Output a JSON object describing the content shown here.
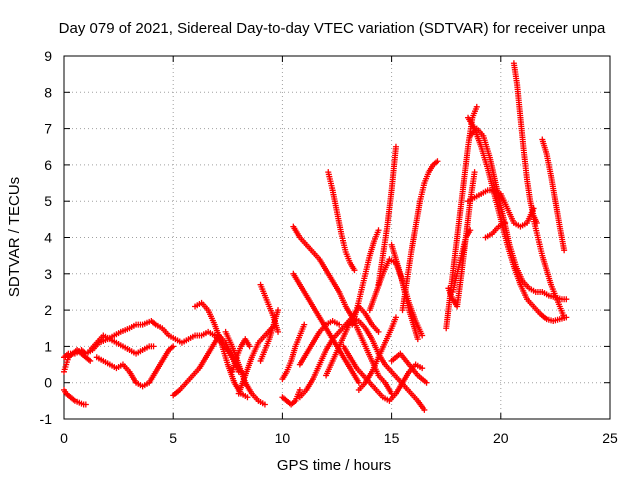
{
  "chart_data": {
    "type": "scatter",
    "title": "Day 079 of 2021, Sidereal Day-to-day VTEC variation (SDTVAR) for receiver unpa",
    "xlabel": "GPS time / hours",
    "ylabel": "SDTVAR / TECUs",
    "xlim": [
      0,
      25
    ],
    "ylim": [
      -1,
      9
    ],
    "xticks": [
      0,
      5,
      10,
      15,
      20,
      25
    ],
    "yticks": [
      -1,
      0,
      1,
      2,
      3,
      4,
      5,
      6,
      7,
      8,
      9
    ],
    "grid": true,
    "marker": "+",
    "color": "#ff0000",
    "series": [
      {
        "x": [
          0.0,
          0.2,
          0.5,
          0.8,
          1.0,
          1.3,
          1.6,
          2.0,
          2.3,
          2.6,
          3.0,
          3.3,
          3.6,
          4.0,
          4.2,
          4.5,
          4.8,
          5.1,
          5.4,
          5.7,
          6.0,
          6.3,
          6.6,
          6.9,
          7.2,
          7.5,
          7.8,
          8.1
        ],
        "y": [
          0.7,
          0.8,
          0.8,
          0.9,
          0.8,
          0.9,
          1.1,
          1.2,
          1.3,
          1.4,
          1.5,
          1.6,
          1.6,
          1.7,
          1.6,
          1.5,
          1.3,
          1.2,
          1.1,
          1.2,
          1.3,
          1.3,
          1.4,
          1.3,
          1.1,
          0.9,
          0.6,
          0.3
        ]
      },
      {
        "x": [
          0.0,
          0.1,
          0.3,
          0.5,
          0.7,
          0.9,
          1.0
        ],
        "y": [
          -0.2,
          -0.3,
          -0.4,
          -0.5,
          -0.55,
          -0.6,
          -0.6
        ]
      },
      {
        "x": [
          0.0,
          0.1,
          0.2,
          0.4,
          0.6,
          0.8,
          1.0,
          1.2
        ],
        "y": [
          0.3,
          0.5,
          0.7,
          0.8,
          0.9,
          0.8,
          0.7,
          0.6
        ]
      },
      {
        "x": [
          1.2,
          1.5,
          1.8,
          2.1,
          2.4,
          2.7,
          3.0,
          3.3,
          3.6,
          3.9,
          4.1
        ],
        "y": [
          0.9,
          1.1,
          1.3,
          1.2,
          1.1,
          1.0,
          0.9,
          0.8,
          0.9,
          1.0,
          1.0
        ]
      },
      {
        "x": [
          1.5,
          1.8,
          2.1,
          2.4,
          2.7,
          3.0,
          3.3,
          3.6,
          3.9,
          4.2,
          4.5,
          4.8,
          5.0
        ],
        "y": [
          0.7,
          0.6,
          0.5,
          0.4,
          0.5,
          0.3,
          0.0,
          -0.1,
          0.0,
          0.3,
          0.6,
          0.9,
          1.0
        ]
      },
      {
        "x": [
          5.0,
          5.3,
          5.6,
          5.9,
          6.2,
          6.5,
          6.8,
          7.1,
          7.4,
          7.7,
          8.0
        ],
        "y": [
          -0.35,
          -0.2,
          0.0,
          0.2,
          0.4,
          0.7,
          1.0,
          1.3,
          1.1,
          0.7,
          0.3
        ]
      },
      {
        "x": [
          6.0,
          6.3,
          6.6,
          6.9,
          7.2,
          7.5,
          7.8,
          8.1,
          8.4
        ],
        "y": [
          2.1,
          2.2,
          2.0,
          1.6,
          1.1,
          0.5,
          0.0,
          -0.3,
          -0.4
        ]
      },
      {
        "x": [
          7.4,
          7.7,
          8.0,
          8.3,
          8.6,
          8.9,
          9.2
        ],
        "y": [
          1.4,
          1.0,
          0.5,
          0.0,
          -0.3,
          -0.5,
          -0.6
        ]
      },
      {
        "x": [
          7.7,
          7.9,
          8.1,
          8.3,
          8.5
        ],
        "y": [
          0.3,
          0.7,
          1.0,
          1.2,
          1.0
        ]
      },
      {
        "x": [
          8.0,
          8.3,
          8.6,
          8.9,
          9.2,
          9.5
        ],
        "y": [
          -0.3,
          0.2,
          0.7,
          1.1,
          1.3,
          1.5
        ]
      },
      {
        "x": [
          9.0,
          9.2,
          9.4,
          9.6,
          9.8
        ],
        "y": [
          2.7,
          2.4,
          2.1,
          1.8,
          1.4
        ]
      },
      {
        "x": [
          9.0,
          9.2,
          9.4,
          9.6,
          9.8
        ],
        "y": [
          0.6,
          0.9,
          1.2,
          1.6,
          2.0
        ]
      },
      {
        "x": [
          10.0,
          10.2,
          10.4,
          10.6,
          10.8,
          11.0
        ],
        "y": [
          0.1,
          0.3,
          0.6,
          1.0,
          1.3,
          1.6
        ]
      },
      {
        "x": [
          10.0,
          10.2,
          10.4,
          10.6,
          10.8
        ],
        "y": [
          -0.4,
          -0.5,
          -0.6,
          -0.5,
          -0.2
        ]
      },
      {
        "x": [
          10.5,
          10.8,
          11.1,
          11.4,
          11.7,
          12.0,
          12.3,
          12.6,
          12.9,
          13.2,
          13.5,
          13.8,
          14.1,
          14.4,
          14.7,
          15.0
        ],
        "y": [
          4.3,
          4.0,
          3.8,
          3.6,
          3.4,
          3.1,
          2.8,
          2.5,
          2.1,
          1.8,
          1.4,
          1.0,
          0.6,
          0.2,
          0.0,
          -0.3
        ]
      },
      {
        "x": [
          10.5,
          10.8,
          11.1,
          11.4,
          11.7,
          12.0,
          12.3,
          12.6,
          12.9,
          13.2,
          13.5
        ],
        "y": [
          3.0,
          2.7,
          2.4,
          2.1,
          1.8,
          1.5,
          1.2,
          0.9,
          0.6,
          0.3,
          0.0
        ]
      },
      {
        "x": [
          10.8,
          11.1,
          11.4,
          11.7,
          12.0,
          12.3,
          12.6,
          12.9,
          13.2,
          13.5,
          13.8,
          14.1,
          14.4,
          14.7,
          15.0,
          15.3,
          15.6,
          15.9,
          16.2,
          16.5
        ],
        "y": [
          -0.4,
          -0.2,
          0.1,
          0.5,
          0.9,
          1.2,
          1.4,
          1.6,
          1.8,
          1.7,
          1.5,
          1.2,
          0.8,
          0.5,
          0.3,
          0.1,
          -0.1,
          -0.3,
          -0.5,
          -0.75
        ]
      },
      {
        "x": [
          10.8,
          11.1,
          11.4,
          11.7,
          12.0,
          12.3,
          12.6
        ],
        "y": [
          0.5,
          0.8,
          1.1,
          1.4,
          1.6,
          1.7,
          1.6
        ]
      },
      {
        "x": [
          12.1,
          12.3,
          12.5,
          12.7,
          12.9,
          13.1,
          13.3
        ],
        "y": [
          5.8,
          5.3,
          4.7,
          4.1,
          3.6,
          3.3,
          3.1
        ]
      },
      {
        "x": [
          12.0,
          12.3,
          12.6,
          12.9,
          13.2,
          13.5,
          13.8,
          14.1,
          14.4
        ],
        "y": [
          0.2,
          0.6,
          1.0,
          1.4,
          1.8,
          2.1,
          1.9,
          1.6,
          1.4
        ]
      },
      {
        "x": [
          12.8,
          13.1,
          13.4,
          13.7,
          14.0,
          14.3,
          14.6,
          14.9,
          15.2,
          15.5,
          15.8,
          16.1,
          16.4
        ],
        "y": [
          1.0,
          0.7,
          0.4,
          0.2,
          0.0,
          -0.2,
          -0.4,
          -0.5,
          -0.3,
          0.0,
          0.3,
          0.5,
          0.4
        ]
      },
      {
        "x": [
          13.2,
          13.4,
          13.6,
          13.8,
          14.0,
          14.2,
          14.4
        ],
        "y": [
          1.6,
          2.0,
          2.5,
          3.0,
          3.5,
          3.9,
          4.2
        ]
      },
      {
        "x": [
          13.5,
          13.8,
          14.1,
          14.4,
          14.7,
          15.0,
          15.2
        ],
        "y": [
          -0.2,
          0.0,
          0.3,
          0.7,
          1.1,
          1.5,
          1.8
        ]
      },
      {
        "x": [
          14.0,
          14.3,
          14.6,
          14.9,
          15.2,
          15.5,
          15.8,
          16.1,
          16.4
        ],
        "y": [
          2.0,
          2.5,
          3.0,
          3.4,
          3.3,
          2.8,
          2.2,
          1.7,
          1.3
        ]
      },
      {
        "x": [
          14.4,
          14.6,
          14.8,
          15.0,
          15.2
        ],
        "y": [
          2.7,
          3.5,
          4.3,
          5.3,
          6.5
        ]
      },
      {
        "x": [
          15.0,
          15.2,
          15.4,
          15.6,
          15.8,
          16.0,
          16.2
        ],
        "y": [
          3.8,
          3.4,
          3.0,
          2.5,
          2.0,
          1.6,
          1.2
        ]
      },
      {
        "x": [
          15.5,
          15.7,
          15.9,
          16.1,
          16.3,
          16.5,
          16.7,
          16.9,
          17.1
        ],
        "y": [
          2.0,
          2.8,
          3.6,
          4.3,
          5.0,
          5.5,
          5.8,
          6.0,
          6.1
        ]
      },
      {
        "x": [
          15.0,
          15.4,
          15.8,
          16.2,
          16.6
        ],
        "y": [
          0.6,
          0.8,
          0.5,
          0.2,
          0.0
        ]
      },
      {
        "x": [
          17.5,
          17.7,
          17.9,
          18.1,
          18.3,
          18.5,
          18.7,
          18.9
        ],
        "y": [
          1.5,
          2.5,
          3.5,
          4.5,
          5.5,
          6.5,
          7.3,
          7.6
        ]
      },
      {
        "x": [
          17.6,
          17.8,
          18.0,
          18.2,
          18.4,
          18.6,
          18.8
        ],
        "y": [
          2.6,
          2.3,
          2.1,
          3.0,
          4.0,
          5.0,
          5.8
        ]
      },
      {
        "x": [
          17.8,
          18.0,
          18.2,
          18.4,
          18.6
        ],
        "y": [
          2.5,
          3.0,
          3.5,
          4.0,
          4.2
        ]
      },
      {
        "x": [
          18.5,
          18.8,
          19.1,
          19.4,
          19.7,
          20.0,
          20.3,
          20.6,
          20.9,
          21.2,
          21.5,
          21.8,
          22.1,
          22.4,
          22.7,
          23.0
        ],
        "y": [
          7.3,
          7.0,
          6.5,
          5.9,
          5.2,
          4.5,
          3.8,
          3.2,
          2.7,
          2.3,
          2.1,
          1.9,
          1.75,
          1.7,
          1.75,
          1.8
        ]
      },
      {
        "x": [
          18.6,
          18.9,
          19.2,
          19.5,
          19.8,
          20.1,
          20.4,
          20.7,
          21.0,
          21.3,
          21.6,
          21.9,
          22.2,
          22.5,
          22.8,
          23.0
        ],
        "y": [
          6.8,
          7.0,
          6.8,
          6.2,
          5.4,
          4.6,
          3.8,
          3.2,
          2.8,
          2.6,
          2.5,
          2.5,
          2.4,
          2.35,
          2.3,
          2.3
        ]
      },
      {
        "x": [
          18.5,
          18.8,
          19.1,
          19.4,
          19.7,
          20.0,
          20.3,
          20.6,
          20.9,
          21.2,
          21.5
        ],
        "y": [
          5.0,
          5.1,
          5.2,
          5.3,
          5.3,
          5.2,
          4.8,
          4.4,
          4.3,
          4.4,
          4.8
        ]
      },
      {
        "x": [
          19.3,
          19.6,
          19.9,
          20.2
        ],
        "y": [
          4.0,
          4.1,
          4.3,
          4.4
        ]
      },
      {
        "x": [
          20.6,
          20.75,
          20.9,
          21.05,
          21.2,
          21.35,
          21.5,
          21.65
        ],
        "y": [
          8.8,
          8.2,
          7.3,
          6.4,
          5.6,
          5.0,
          4.6,
          4.4
        ]
      },
      {
        "x": [
          21.5,
          21.7,
          21.9,
          22.1,
          22.3,
          22.5,
          22.7,
          22.9
        ],
        "y": [
          4.5,
          4.0,
          3.5,
          3.1,
          2.7,
          2.4,
          2.1,
          1.8
        ]
      },
      {
        "x": [
          21.9,
          22.1,
          22.3,
          22.5,
          22.7,
          22.9
        ],
        "y": [
          6.7,
          6.3,
          5.7,
          5.0,
          4.3,
          3.65
        ]
      }
    ]
  }
}
